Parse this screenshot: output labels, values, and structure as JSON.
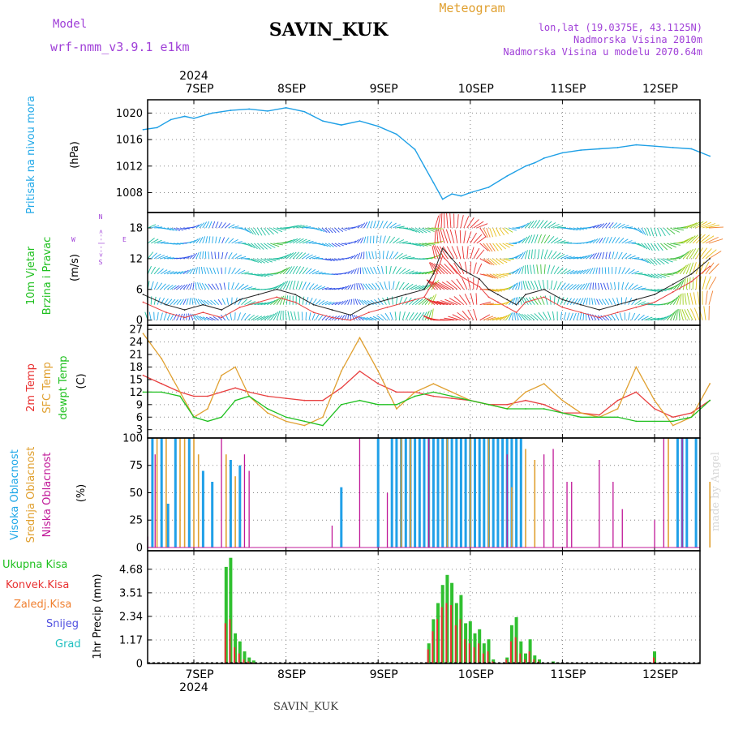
{
  "header": {
    "station": "SAVIN_KUK",
    "model_label": "Model",
    "model_name": "wrf-nmm_v3.9.1 e1km",
    "product": "Meteogram",
    "coords": "lon,lat (19.0375E, 43.1125N)",
    "elevation": "Nadmorska Visina 2010m",
    "model_elevation": "Nadmorska Visina u modelu 2070.64m",
    "year_top": "2024",
    "year_bottom": "2024",
    "footer_station": "SAVIN_KUK",
    "watermark": "made by Angel"
  },
  "colors": {
    "pressure": "#1fa0e6",
    "label_blue": "#20a8e8",
    "label_green": "#20c020",
    "label_red": "#e83030",
    "label_orange": "#e0a030",
    "label_magenta": "#c01898",
    "label_purple": "#a040d8",
    "temp2m": "#e84040",
    "sfc_temp": "#e0a030",
    "dewpt": "#20c020",
    "high_cloud": "#20a0e8",
    "mid_cloud": "#e0a030",
    "low_cloud": "#c01898",
    "total_precip": "#30c030",
    "conv_precip": "#e83030",
    "frozen_precip": "#f08030",
    "snow": "#5050e0",
    "hail": "#20c0c0"
  },
  "chart_data": [
    {
      "type": "line",
      "name": "pressure",
      "ylabel_title": "Pritisak na nivou mora",
      "ylabel_unit": "(hPa)",
      "ylim": [
        1005,
        1022
      ],
      "yticks": [
        1008,
        1012,
        1016,
        1020
      ],
      "x_days": [
        "7SEP",
        "8SEP",
        "9SEP",
        "10SEP",
        "11SEP",
        "12SEP"
      ],
      "x": [
        -0.55,
        -0.4,
        -0.25,
        -0.1,
        0,
        0.2,
        0.4,
        0.6,
        0.8,
        1.0,
        1.2,
        1.4,
        1.6,
        1.8,
        2.0,
        2.2,
        2.4,
        2.5,
        2.6,
        2.7,
        2.8,
        2.9,
        3.0,
        3.2,
        3.4,
        3.6,
        3.7,
        3.8,
        4.0,
        4.2,
        4.4,
        4.6,
        4.8,
        5.0,
        5.2,
        5.4,
        5.6
      ],
      "values": [
        1017.5,
        1017.8,
        1019.0,
        1019.5,
        1019.2,
        1020.0,
        1020.4,
        1020.6,
        1020.3,
        1020.8,
        1020.2,
        1018.8,
        1018.2,
        1018.8,
        1018.0,
        1016.8,
        1014.5,
        1012.0,
        1009.5,
        1007.0,
        1007.8,
        1007.5,
        1008.0,
        1008.8,
        1010.5,
        1012.0,
        1012.5,
        1013.2,
        1014.0,
        1014.4,
        1014.6,
        1014.8,
        1015.2,
        1015.0,
        1014.8,
        1014.6,
        1013.5
      ]
    },
    {
      "type": "line",
      "name": "wind",
      "ylabel_title": "10m Vjetar Brzina i Pravac",
      "ylabel_unit": "(m/s)",
      "compass": [
        "N",
        "W",
        "E",
        "S"
      ],
      "ylim": [
        -1,
        21
      ],
      "yticks": [
        0,
        6,
        12,
        18
      ],
      "x": [
        -0.55,
        -0.3,
        -0.1,
        0.1,
        0.3,
        0.5,
        0.7,
        0.9,
        1.1,
        1.3,
        1.5,
        1.7,
        1.9,
        2.1,
        2.3,
        2.5,
        2.6,
        2.7,
        2.8,
        2.9,
        3.0,
        3.1,
        3.2,
        3.3,
        3.4,
        3.5,
        3.6,
        3.8,
        4.0,
        4.2,
        4.4,
        4.6,
        4.8,
        5.0,
        5.2,
        5.4,
        5.6
      ],
      "values": [
        5,
        3,
        2,
        3,
        2,
        4,
        5,
        6,
        5,
        3,
        2,
        1,
        3,
        4,
        5,
        6,
        9,
        14,
        12,
        10,
        9,
        8,
        6,
        5,
        4,
        3,
        5,
        6,
        4,
        3,
        2,
        3,
        4,
        5,
        7,
        9,
        12
      ]
    },
    {
      "type": "line",
      "name": "temperature",
      "ylabel_title_red": "2m Temp",
      "ylabel_title_orange": "SFC Temp",
      "ylabel_title_green": "dewpt Temp",
      "ylabel_unit": "(C)",
      "ylim": [
        1,
        28
      ],
      "yticks": [
        3,
        6,
        9,
        12,
        15,
        18,
        21,
        24,
        27
      ],
      "x": [
        -0.55,
        -0.35,
        -0.15,
        0.0,
        0.15,
        0.3,
        0.45,
        0.6,
        0.8,
        1.0,
        1.2,
        1.4,
        1.6,
        1.8,
        2.0,
        2.2,
        2.4,
        2.6,
        2.8,
        3.0,
        3.2,
        3.4,
        3.6,
        3.8,
        4.0,
        4.2,
        4.4,
        4.6,
        4.8,
        5.0,
        5.2,
        5.4,
        5.6
      ],
      "series": [
        {
          "name": "2m Temp",
          "color": "#e84040",
          "values": [
            16,
            14,
            12,
            11,
            11,
            12,
            13,
            12,
            11,
            10.5,
            10,
            10,
            13,
            17,
            14,
            12,
            12,
            11,
            10.5,
            10,
            9,
            9,
            10,
            9,
            7,
            7,
            6.5,
            10,
            12,
            8,
            6,
            7,
            10
          ]
        },
        {
          "name": "SFC Temp",
          "color": "#e0a030",
          "values": [
            26,
            20,
            12,
            6,
            8,
            16,
            18,
            11,
            7,
            5,
            4,
            6,
            17,
            25,
            17,
            8,
            12,
            14,
            12,
            10,
            9,
            8,
            12,
            14,
            10,
            7,
            6,
            8,
            18,
            10,
            4,
            6,
            14
          ]
        },
        {
          "name": "dewpt Temp",
          "color": "#20c020",
          "values": [
            12,
            12,
            11,
            6,
            5,
            6,
            10,
            11,
            8,
            6,
            5,
            4,
            9,
            10,
            9,
            9,
            11,
            12,
            11,
            10,
            9,
            8,
            8,
            8,
            7,
            6,
            6,
            6,
            5,
            5,
            5,
            6,
            10
          ]
        }
      ]
    },
    {
      "type": "bar",
      "name": "clouds",
      "ylabel_title_blue": "Visoka Oblacnost",
      "ylabel_title_orange": "Srednja Oblacnost",
      "ylabel_title_magenta": "Niska Oblacnost",
      "ylabel_unit": "(%)",
      "ylim": [
        -3,
        100
      ],
      "yticks": [
        0,
        25,
        50,
        75,
        100
      ],
      "high": [
        [
          -0.45,
          100
        ],
        [
          -0.35,
          100
        ],
        [
          -0.28,
          40
        ],
        [
          -0.2,
          100
        ],
        [
          -0.05,
          100
        ],
        [
          0.1,
          70
        ],
        [
          0.2,
          60
        ],
        [
          0.4,
          80
        ],
        [
          0.5,
          75
        ],
        [
          1.6,
          55
        ],
        [
          2.0,
          100
        ],
        [
          2.15,
          100
        ],
        [
          2.2,
          100
        ],
        [
          2.25,
          100
        ],
        [
          2.3,
          100
        ],
        [
          2.35,
          100
        ],
        [
          2.4,
          100
        ],
        [
          2.45,
          100
        ],
        [
          2.5,
          100
        ],
        [
          2.55,
          100
        ],
        [
          2.6,
          100
        ],
        [
          2.65,
          100
        ],
        [
          2.7,
          100
        ],
        [
          2.75,
          100
        ],
        [
          2.8,
          100
        ],
        [
          2.85,
          100
        ],
        [
          2.9,
          100
        ],
        [
          2.95,
          100
        ],
        [
          3.0,
          100
        ],
        [
          3.05,
          100
        ],
        [
          3.1,
          100
        ],
        [
          3.15,
          100
        ],
        [
          3.2,
          100
        ],
        [
          3.25,
          100
        ],
        [
          3.3,
          100
        ],
        [
          3.35,
          100
        ],
        [
          3.4,
          100
        ],
        [
          3.45,
          100
        ],
        [
          3.5,
          100
        ],
        [
          3.55,
          100
        ],
        [
          5.25,
          100
        ],
        [
          5.3,
          100
        ],
        [
          5.35,
          100
        ],
        [
          5.45,
          100
        ]
      ],
      "mid": [
        [
          -0.4,
          100
        ],
        [
          -0.3,
          100
        ],
        [
          -0.15,
          100
        ],
        [
          -0.1,
          100
        ],
        [
          0.0,
          100
        ],
        [
          0.05,
          85
        ],
        [
          0.35,
          85
        ],
        [
          0.45,
          65
        ],
        [
          2.25,
          100
        ],
        [
          2.35,
          100
        ],
        [
          2.55,
          100
        ],
        [
          2.75,
          100
        ],
        [
          3.0,
          100
        ],
        [
          3.2,
          100
        ],
        [
          3.45,
          55
        ],
        [
          3.6,
          90
        ],
        [
          3.7,
          80
        ],
        [
          5.15,
          100
        ],
        [
          5.6,
          60
        ]
      ],
      "low": [
        [
          -0.5,
          10
        ],
        [
          -0.42,
          85
        ],
        [
          0.3,
          100
        ],
        [
          0.55,
          85
        ],
        [
          0.6,
          70
        ],
        [
          1.5,
          20
        ],
        [
          1.8,
          100
        ],
        [
          2.1,
          50
        ],
        [
          2.55,
          100
        ],
        [
          3.4,
          85
        ],
        [
          3.8,
          85
        ],
        [
          3.9,
          90
        ],
        [
          4.05,
          60
        ],
        [
          4.1,
          60
        ],
        [
          4.4,
          80
        ],
        [
          4.55,
          60
        ],
        [
          4.65,
          35
        ],
        [
          5.0,
          25
        ],
        [
          5.1,
          100
        ],
        [
          5.3,
          100
        ]
      ]
    },
    {
      "type": "bar",
      "name": "precipitation",
      "legend": [
        "Ukupna Kisa",
        "Konvek.Kisa",
        "Zaledj.Kisa",
        "Snijeg",
        "Grad"
      ],
      "ylabel_unit": "1hr Precip (mm)",
      "ylim": [
        0,
        5.6
      ],
      "yticks": [
        0,
        1.17,
        2.34,
        3.51,
        4.68
      ],
      "x": [
        0.35,
        0.4,
        0.45,
        0.5,
        0.55,
        0.6,
        0.65,
        2.55,
        2.6,
        2.65,
        2.7,
        2.75,
        2.8,
        2.85,
        2.9,
        2.95,
        3.0,
        3.05,
        3.1,
        3.15,
        3.2,
        3.25,
        3.4,
        3.45,
        3.5,
        3.55,
        3.6,
        3.65,
        3.7,
        3.75,
        3.9,
        3.95,
        5.0
      ],
      "total": [
        4.8,
        5.25,
        1.5,
        1.1,
        0.6,
        0.3,
        0.15,
        1.0,
        2.2,
        3.0,
        3.9,
        4.4,
        4.0,
        3.0,
        3.4,
        2.0,
        2.1,
        1.5,
        1.7,
        1.0,
        1.2,
        0.2,
        0.3,
        1.9,
        2.3,
        1.1,
        0.5,
        1.2,
        0.4,
        0.2,
        0.1,
        0.05,
        0.6
      ],
      "convective": [
        2.0,
        2.2,
        0.8,
        0.5,
        0.2,
        0.1,
        0.05,
        0.7,
        1.6,
        2.2,
        2.8,
        3.0,
        2.9,
        1.9,
        2.2,
        1.2,
        1.0,
        0.8,
        1.0,
        0.5,
        0.6,
        0.1,
        0.2,
        1.1,
        1.3,
        0.5,
        0.2,
        0.6,
        0.2,
        0.1,
        0.05,
        0.0,
        0.3
      ]
    }
  ]
}
